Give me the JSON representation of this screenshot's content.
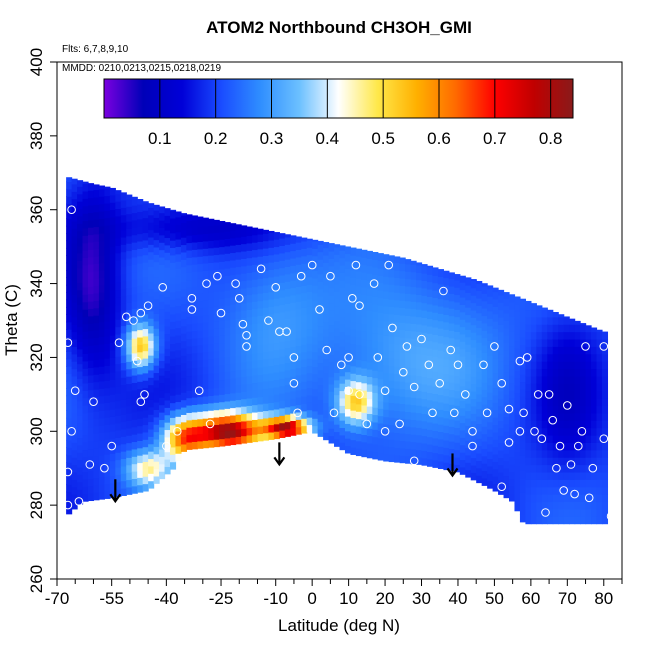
{
  "chart_data": {
    "type": "heatmap",
    "title": "ATOM2 Northbound CH3OH_GMI",
    "subtitle_lines": [
      "Flts: 6,7,8,9,10",
      "MMDD: 0210,0213,0215,0218,0219"
    ],
    "xlabel": "Latitude (deg N)",
    "ylabel": "Theta (C)",
    "xlim": [
      -70,
      85
    ],
    "ylim": [
      260,
      400
    ],
    "x_ticks": [
      -70,
      -55,
      -40,
      -25,
      -10,
      0,
      10,
      20,
      30,
      40,
      50,
      60,
      70,
      80
    ],
    "x_minor_ticks": [
      -65,
      -60,
      -50,
      -45,
      -35,
      -30,
      -20,
      -15,
      -5,
      5,
      15,
      25,
      35,
      45,
      55,
      65,
      75,
      85
    ],
    "y_ticks": [
      260,
      280,
      300,
      320,
      340,
      360,
      380,
      400
    ],
    "colorbar": {
      "range": [
        0,
        0.84
      ],
      "ticks": [
        0.1,
        0.2,
        0.3,
        0.4,
        0.5,
        0.6,
        0.7,
        0.8
      ],
      "colors": [
        "#7b00e0",
        "#0000b8",
        "#0000d8",
        "#1a4cff",
        "#2f8eff",
        "#6cc0ff",
        "#ffffff",
        "#ffe84a",
        "#ffb000",
        "#ff6a00",
        "#ff0000",
        "#c00000",
        "#8a1a1a"
      ]
    },
    "field": {
      "top_boundary": [
        [
          -67.5,
          369
        ],
        [
          -60,
          367
        ],
        [
          -55,
          366
        ],
        [
          -45,
          362
        ],
        [
          -35,
          359
        ],
        [
          -25,
          357
        ],
        [
          -15,
          355
        ],
        [
          -5,
          353
        ],
        [
          5,
          351
        ],
        [
          15,
          349
        ],
        [
          25,
          347
        ],
        [
          35,
          344
        ],
        [
          45,
          341
        ],
        [
          55,
          337
        ],
        [
          65,
          333
        ],
        [
          75,
          329
        ],
        [
          80,
          327
        ]
      ],
      "bottom_boundary": [
        [
          -67.5,
          277
        ],
        [
          -63,
          281
        ],
        [
          -55,
          282
        ],
        [
          -45,
          284
        ],
        [
          -38,
          290
        ],
        [
          -35,
          295
        ],
        [
          -25,
          296
        ],
        [
          -10,
          298
        ],
        [
          0,
          300
        ],
        [
          10,
          294
        ],
        [
          20,
          292
        ],
        [
          30,
          291
        ],
        [
          40,
          289
        ],
        [
          50,
          284
        ],
        [
          55,
          281
        ],
        [
          58,
          275
        ],
        [
          80,
          275
        ]
      ],
      "background_value": 0.2,
      "anomalies": [
        {
          "lat": -23,
          "theta": 300,
          "value": 0.82,
          "slat": 9,
          "stheta": 5
        },
        {
          "lat": -7,
          "theta": 301,
          "value": 0.78,
          "slat": 6,
          "stheta": 3
        },
        {
          "lat": -35,
          "theta": 298,
          "value": 0.6,
          "slat": 6,
          "stheta": 6
        },
        {
          "lat": -45,
          "theta": 290,
          "value": 0.45,
          "slat": 6,
          "stheta": 5
        },
        {
          "lat": -47,
          "theta": 323,
          "value": 0.55,
          "slat": 4,
          "stheta": 6
        },
        {
          "lat": 12,
          "theta": 308,
          "value": 0.5,
          "slat": 5,
          "stheta": 6
        },
        {
          "lat": 22,
          "theta": 316,
          "value": 0.3,
          "slat": 20,
          "stheta": 20
        },
        {
          "lat": -10,
          "theta": 335,
          "value": 0.3,
          "slat": 15,
          "stheta": 20
        },
        {
          "lat": 40,
          "theta": 330,
          "value": 0.25,
          "slat": 20,
          "stheta": 20
        },
        {
          "lat": -60,
          "theta": 340,
          "value": 0.05,
          "slat": 7,
          "stheta": 25
        },
        {
          "lat": -30,
          "theta": 355,
          "value": 0.1,
          "slat": 25,
          "stheta": 6
        },
        {
          "lat": 70,
          "theta": 310,
          "value": 0.12,
          "slat": 8,
          "stheta": 20
        }
      ],
      "observations": [
        [
          -67,
          280
        ],
        [
          -67,
          289
        ],
        [
          -66,
          300
        ],
        [
          -65,
          311
        ],
        [
          -67,
          324
        ],
        [
          -69,
          335
        ],
        [
          -66,
          360
        ],
        [
          -64,
          281
        ],
        [
          -61,
          291
        ],
        [
          -60,
          308
        ],
        [
          -57,
          290
        ],
        [
          -55,
          296
        ],
        [
          -53,
          324
        ],
        [
          -51,
          331
        ],
        [
          -49,
          330
        ],
        [
          -47,
          332
        ],
        [
          -45,
          334
        ],
        [
          -46,
          310
        ],
        [
          -47,
          308
        ],
        [
          -48,
          319
        ],
        [
          -41,
          339
        ],
        [
          -37,
          300
        ],
        [
          -33,
          336
        ],
        [
          -33,
          333
        ],
        [
          -31,
          311
        ],
        [
          -29,
          340
        ],
        [
          -28,
          302
        ],
        [
          -26,
          342
        ],
        [
          -25,
          332
        ],
        [
          -21,
          340
        ],
        [
          -20,
          336
        ],
        [
          -19,
          329
        ],
        [
          -18,
          326
        ],
        [
          -18,
          323
        ],
        [
          -14,
          344
        ],
        [
          -12,
          330
        ],
        [
          -10,
          339
        ],
        [
          -9,
          327
        ],
        [
          -7,
          327
        ],
        [
          -5,
          313
        ],
        [
          -4,
          305
        ],
        [
          -5,
          320
        ],
        [
          -3,
          342
        ],
        [
          0,
          345
        ],
        [
          2,
          333
        ],
        [
          4,
          322
        ],
        [
          6,
          305
        ],
        [
          5,
          342
        ],
        [
          8,
          318
        ],
        [
          10,
          311
        ],
        [
          11,
          336
        ],
        [
          10,
          320
        ],
        [
          12,
          345
        ],
        [
          13,
          334
        ],
        [
          13,
          310
        ],
        [
          15,
          302
        ],
        [
          17,
          340
        ],
        [
          18,
          320
        ],
        [
          20,
          311
        ],
        [
          20,
          300
        ],
        [
          21,
          345
        ],
        [
          22,
          328
        ],
        [
          24,
          302
        ],
        [
          25,
          316
        ],
        [
          26,
          323
        ],
        [
          28,
          312
        ],
        [
          28,
          292
        ],
        [
          30,
          325
        ],
        [
          32,
          318
        ],
        [
          33,
          305
        ],
        [
          35,
          313
        ],
        [
          36,
          338
        ],
        [
          38,
          322
        ],
        [
          39,
          305
        ],
        [
          40,
          318
        ],
        [
          42,
          310
        ],
        [
          44,
          300
        ],
        [
          47,
          318
        ],
        [
          48,
          305
        ],
        [
          50,
          323
        ],
        [
          52,
          285
        ],
        [
          52,
          313
        ],
        [
          54,
          306
        ],
        [
          54,
          297
        ],
        [
          57,
          319
        ],
        [
          57,
          300
        ],
        [
          59,
          320
        ],
        [
          58,
          305
        ],
        [
          61,
          300
        ],
        [
          62,
          310
        ],
        [
          63,
          298
        ],
        [
          64,
          278
        ],
        [
          65,
          310
        ],
        [
          66,
          303
        ],
        [
          67,
          290
        ],
        [
          68,
          296
        ],
        [
          69,
          284
        ],
        [
          70,
          307
        ],
        [
          71,
          291
        ],
        [
          72,
          283
        ],
        [
          73,
          296
        ],
        [
          74,
          300
        ],
        [
          75,
          323
        ],
        [
          76,
          282
        ],
        [
          77,
          290
        ],
        [
          80,
          323
        ],
        [
          80,
          298
        ],
        [
          82,
          277
        ],
        [
          -40,
          296
        ],
        [
          44,
          296
        ]
      ],
      "arrows": [
        {
          "lat": -54,
          "theta": 287
        },
        {
          "lat": -9,
          "theta": 297
        },
        {
          "lat": 38.5,
          "theta": 294
        }
      ]
    }
  }
}
